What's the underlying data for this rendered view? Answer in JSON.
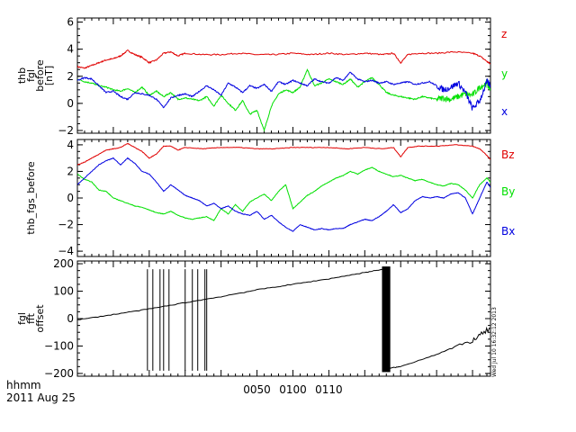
{
  "footer": {
    "time_unit": "hhmm",
    "date": "2011 Aug 25",
    "timestamp": "Wed Jul 10 16:32:12 2013"
  },
  "colors": {
    "red": "#e00000",
    "green": "#00e000",
    "blue": "#0000e0",
    "black": "#000000"
  },
  "x_ticks": [
    "0050",
    "0100",
    "0110"
  ],
  "chart_data": [
    {
      "type": "line",
      "ylabel_lines": [
        "thb",
        "fgl",
        "before",
        "[nT]"
      ],
      "ylim": [
        -2.2,
        6.3
      ],
      "yticks": [
        -2,
        0,
        2,
        4,
        6
      ],
      "xlim": [
        0,
        115
      ],
      "legend_placement": "right",
      "series": [
        {
          "name": "z",
          "color": "#e00000",
          "x": [
            0,
            2,
            4,
            6,
            8,
            10,
            12,
            14,
            16,
            18,
            20,
            22,
            24,
            26,
            28,
            30,
            35,
            40,
            45,
            50,
            55,
            60,
            65,
            70,
            75,
            80,
            85,
            88,
            90,
            92,
            95,
            100,
            105,
            110,
            112,
            114,
            115
          ],
          "y": [
            2.7,
            2.6,
            2.8,
            3.0,
            3.2,
            3.3,
            3.5,
            3.9,
            3.6,
            3.4,
            3.0,
            3.2,
            3.7,
            3.8,
            3.5,
            3.7,
            3.6,
            3.6,
            3.7,
            3.6,
            3.6,
            3.7,
            3.6,
            3.7,
            3.6,
            3.7,
            3.6,
            3.7,
            3.0,
            3.6,
            3.7,
            3.7,
            3.8,
            3.7,
            3.5,
            3.1,
            2.9
          ]
        },
        {
          "name": "y",
          "color": "#00e000",
          "x": [
            0,
            2,
            4,
            6,
            8,
            10,
            12,
            14,
            16,
            18,
            20,
            22,
            24,
            26,
            28,
            30,
            32,
            34,
            36,
            38,
            40,
            42,
            44,
            46,
            48,
            50,
            52,
            54,
            56,
            58,
            60,
            62,
            64,
            66,
            68,
            70,
            72,
            74,
            76,
            78,
            80,
            82,
            84,
            86,
            88,
            90,
            92,
            94,
            96,
            98,
            100,
            102,
            104,
            106,
            108,
            110,
            112,
            114,
            115
          ],
          "y": [
            1.8,
            1.6,
            1.5,
            1.3,
            1.2,
            1.0,
            0.9,
            1.1,
            0.8,
            1.2,
            0.6,
            0.9,
            0.5,
            0.8,
            0.3,
            0.4,
            0.3,
            0.2,
            0.5,
            -0.2,
            0.6,
            0.0,
            -0.5,
            0.2,
            -0.8,
            -0.5,
            -2.0,
            -0.2,
            0.7,
            1.0,
            0.8,
            1.2,
            2.5,
            1.3,
            1.5,
            1.8,
            1.6,
            1.4,
            1.8,
            1.2,
            1.6,
            1.9,
            1.4,
            0.8,
            0.6,
            0.5,
            0.4,
            0.3,
            0.5,
            0.4,
            0.3,
            0.4,
            0.3,
            0.5,
            0.7,
            0.6,
            1.2,
            1.5,
            1.0
          ]
        },
        {
          "name": "x",
          "color": "#0000e0",
          "x": [
            0,
            2,
            4,
            6,
            8,
            10,
            12,
            14,
            16,
            18,
            20,
            22,
            24,
            26,
            28,
            30,
            32,
            34,
            36,
            38,
            40,
            42,
            44,
            46,
            48,
            50,
            52,
            54,
            56,
            58,
            60,
            62,
            64,
            66,
            68,
            70,
            72,
            74,
            76,
            78,
            80,
            82,
            84,
            86,
            88,
            90,
            92,
            94,
            96,
            98,
            100,
            102,
            104,
            106,
            108,
            110,
            112,
            114,
            115
          ],
          "y": [
            1.7,
            1.9,
            1.8,
            1.3,
            0.8,
            0.9,
            0.5,
            0.3,
            0.8,
            0.7,
            0.6,
            0.3,
            -0.3,
            0.4,
            0.6,
            0.7,
            0.5,
            0.9,
            1.3,
            1.0,
            0.6,
            1.5,
            1.2,
            0.8,
            1.3,
            1.1,
            1.4,
            0.9,
            1.6,
            1.4,
            1.7,
            1.5,
            1.3,
            1.8,
            1.6,
            1.5,
            1.9,
            1.7,
            2.3,
            1.8,
            1.6,
            1.7,
            1.5,
            1.6,
            1.4,
            1.5,
            1.6,
            1.4,
            1.5,
            1.6,
            1.3,
            1.0,
            1.2,
            1.5,
            0.8,
            -0.4,
            0.2,
            1.6,
            1.3
          ]
        }
      ]
    },
    {
      "type": "line",
      "ylabel_lines": [
        "thb_fgs_before"
      ],
      "ylim": [
        -4.4,
        4.4
      ],
      "yticks": [
        -4,
        -2,
        0,
        2,
        4
      ],
      "xlim": [
        0,
        115
      ],
      "legend_placement": "right",
      "series": [
        {
          "name": "Bz",
          "color": "#e00000",
          "x": [
            0,
            2,
            4,
            6,
            8,
            10,
            12,
            14,
            16,
            18,
            20,
            22,
            24,
            26,
            28,
            30,
            35,
            40,
            45,
            50,
            55,
            60,
            65,
            70,
            75,
            80,
            85,
            88,
            90,
            92,
            95,
            100,
            105,
            110,
            112,
            114,
            115
          ],
          "y": [
            2.5,
            2.7,
            3.0,
            3.3,
            3.6,
            3.7,
            3.8,
            4.1,
            3.8,
            3.5,
            3.0,
            3.3,
            3.9,
            3.9,
            3.6,
            3.8,
            3.7,
            3.8,
            3.8,
            3.7,
            3.7,
            3.8,
            3.8,
            3.8,
            3.7,
            3.8,
            3.7,
            3.8,
            3.1,
            3.8,
            3.9,
            3.9,
            4.0,
            3.9,
            3.7,
            3.2,
            2.9
          ]
        },
        {
          "name": "By",
          "color": "#00e000",
          "x": [
            0,
            2,
            4,
            6,
            8,
            10,
            12,
            14,
            16,
            18,
            20,
            22,
            24,
            26,
            28,
            30,
            32,
            34,
            36,
            38,
            40,
            42,
            44,
            46,
            48,
            50,
            52,
            54,
            56,
            58,
            60,
            62,
            64,
            66,
            68,
            70,
            72,
            74,
            76,
            78,
            80,
            82,
            84,
            86,
            88,
            90,
            92,
            94,
            96,
            98,
            100,
            102,
            104,
            106,
            108,
            110,
            112,
            114,
            115
          ],
          "y": [
            1.8,
            1.4,
            1.2,
            0.6,
            0.5,
            0.0,
            -0.2,
            -0.4,
            -0.6,
            -0.7,
            -0.9,
            -1.1,
            -1.2,
            -1.0,
            -1.3,
            -1.5,
            -1.6,
            -1.5,
            -1.4,
            -1.7,
            -0.8,
            -1.2,
            -0.5,
            -1.0,
            -0.3,
            0.0,
            0.3,
            -0.2,
            0.5,
            1.0,
            -0.8,
            -0.3,
            0.2,
            0.5,
            0.9,
            1.2,
            1.5,
            1.7,
            2.0,
            1.8,
            2.1,
            2.3,
            2.0,
            1.8,
            1.6,
            1.7,
            1.5,
            1.3,
            1.4,
            1.2,
            1.0,
            0.9,
            1.1,
            1.0,
            0.6,
            0.0,
            1.0,
            1.5,
            1.2
          ]
        },
        {
          "name": "Bx",
          "color": "#0000e0",
          "x": [
            0,
            2,
            4,
            6,
            8,
            10,
            12,
            14,
            16,
            18,
            20,
            22,
            24,
            26,
            28,
            30,
            32,
            34,
            36,
            38,
            40,
            42,
            44,
            46,
            48,
            50,
            52,
            54,
            56,
            58,
            60,
            62,
            64,
            66,
            68,
            70,
            72,
            74,
            76,
            78,
            80,
            82,
            84,
            86,
            88,
            90,
            92,
            94,
            96,
            98,
            100,
            102,
            104,
            106,
            108,
            110,
            112,
            114,
            115
          ],
          "y": [
            1.0,
            1.5,
            2.0,
            2.5,
            2.8,
            3.0,
            2.5,
            3.0,
            2.6,
            2.0,
            1.8,
            1.2,
            0.5,
            1.0,
            0.6,
            0.2,
            0.0,
            -0.2,
            -0.6,
            -0.4,
            -0.8,
            -0.6,
            -1.0,
            -1.2,
            -1.3,
            -1.0,
            -1.6,
            -1.3,
            -1.8,
            -2.2,
            -2.5,
            -2.0,
            -2.2,
            -2.4,
            -2.3,
            -2.4,
            -2.3,
            -2.3,
            -2.0,
            -1.8,
            -1.6,
            -1.7,
            -1.4,
            -1.0,
            -0.5,
            -1.1,
            -0.8,
            -0.2,
            0.1,
            0.0,
            0.1,
            0.0,
            0.3,
            0.4,
            0.0,
            -1.2,
            0.0,
            1.2,
            0.8
          ]
        }
      ]
    },
    {
      "type": "line",
      "ylabel_lines": [
        "fgl",
        "fft",
        "offset"
      ],
      "ylim": [
        -210,
        210
      ],
      "yticks": [
        -200,
        -100,
        0,
        100,
        200
      ],
      "xlim": [
        0,
        115
      ],
      "series": [
        {
          "name": "",
          "color": "#000000",
          "x": [
            0,
            10,
            20,
            30,
            40,
            50,
            60,
            70,
            80,
            85.9,
            86.1,
            90,
            100,
            110,
            115
          ],
          "y": [
            -5,
            15,
            35,
            58,
            80,
            105,
            125,
            145,
            168,
            182,
            -182,
            -175,
            -130,
            -80,
            -35
          ]
        }
      ],
      "spikes_x": [
        19.5,
        21,
        23,
        24,
        25.5,
        30,
        32,
        33.5,
        35.5,
        36
      ],
      "dense_block_x": [
        84.8,
        87.1
      ],
      "noise_start_x": 100
    }
  ]
}
